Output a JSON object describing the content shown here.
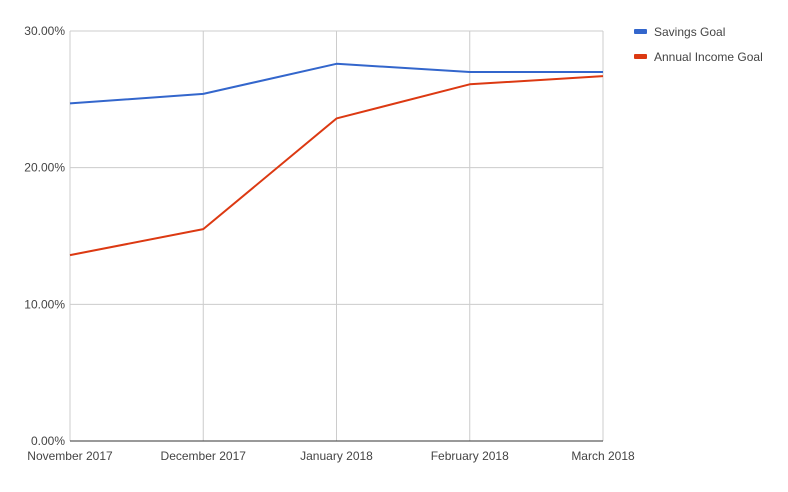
{
  "chart_data": {
    "type": "line",
    "title": "",
    "xlabel": "",
    "ylabel": "",
    "categories": [
      "November 2017",
      "December 2017",
      "January 2018",
      "February 2018",
      "March 2018"
    ],
    "ylim": [
      0,
      0.3
    ],
    "yticks": [
      0,
      0.1,
      0.2,
      0.3
    ],
    "ytick_labels": [
      "0.00%",
      "10.00%",
      "20.00%",
      "30.00%"
    ],
    "grid": true,
    "legend_position": "right",
    "series": [
      {
        "name": "Savings Goal",
        "color": "#3366cc",
        "values": [
          0.247,
          0.254,
          0.276,
          0.27,
          0.27
        ]
      },
      {
        "name": "Annual Income Goal",
        "color": "#dc3912",
        "values": [
          0.136,
          0.155,
          0.236,
          0.261,
          0.267
        ]
      }
    ]
  }
}
